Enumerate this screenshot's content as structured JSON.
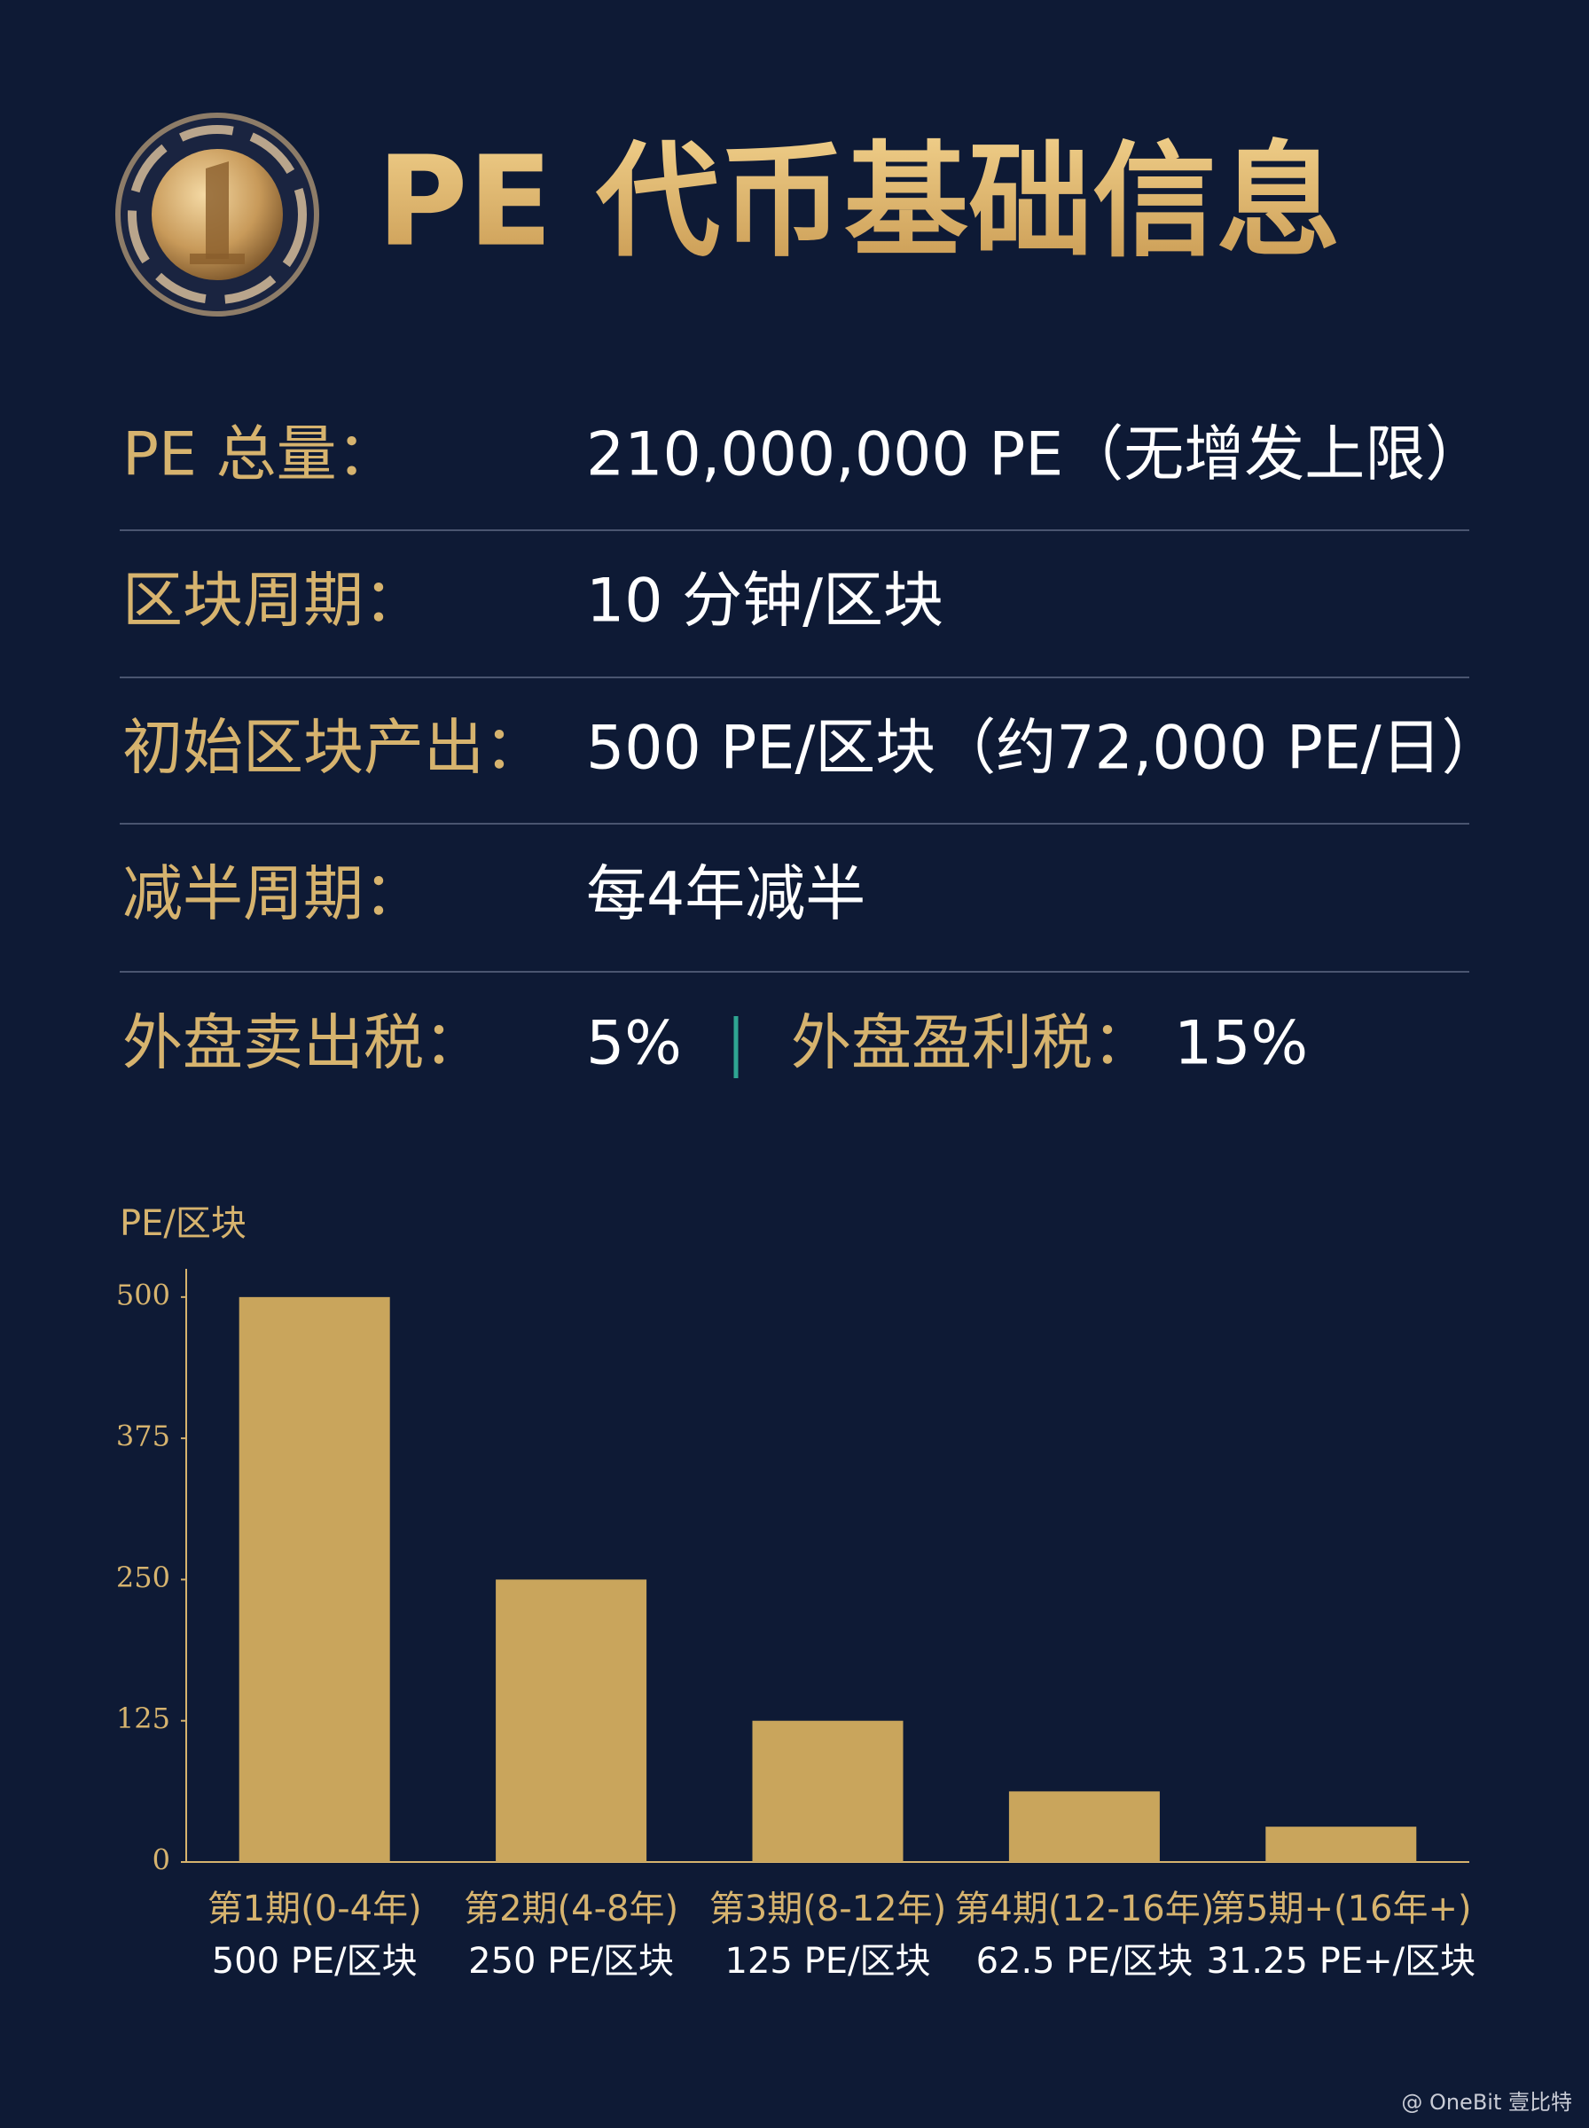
{
  "header": {
    "title": "PE 代币基础信息"
  },
  "info": {
    "rows": [
      {
        "label": "PE 总量：",
        "value": "210,000,000 PE（无增发上限）"
      },
      {
        "label": "区块周期：",
        "value": "10 分钟/区块"
      },
      {
        "label": "初始区块产出：",
        "value": "500 PE/区块（约72,000 PE/日）"
      },
      {
        "label": "减半周期：",
        "value": "每4年减半"
      },
      {
        "label": "外盘卖出税：",
        "value": "5%",
        "extra_label": "外盘盈利税：",
        "extra_value": "15%"
      }
    ]
  },
  "chart_data": {
    "type": "bar",
    "y_label": "PE/区块",
    "categories": [
      "第1期(0-4年)",
      "第2期(4-8年)",
      "第3期(8-12年)",
      "第4期(12-16年)",
      "第5期+(16年+)"
    ],
    "values": [
      500,
      250,
      125,
      62.5,
      31.25
    ],
    "value_labels": [
      "500 PE/区块",
      "250 PE/区块",
      "125 PE/区块",
      "62.5 PE/区块",
      "31.25 PE+/区块"
    ],
    "color": "#c9a55c",
    "ylim": [
      0,
      525
    ],
    "yticks": [
      0,
      125,
      250,
      375,
      500
    ]
  },
  "watermark": "@ OneBit 壹比特"
}
